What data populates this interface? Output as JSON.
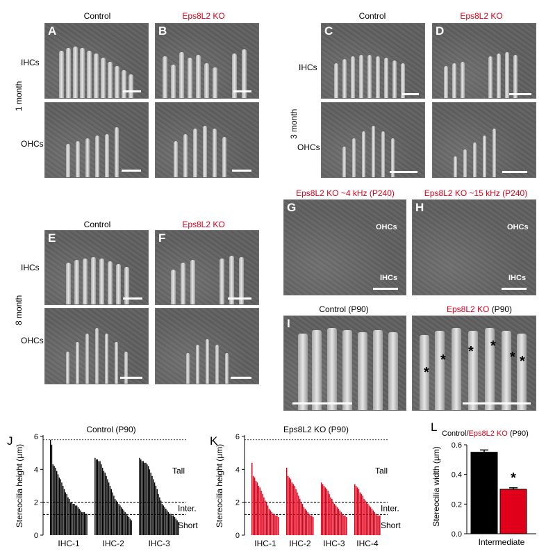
{
  "group1": {
    "age_label": "1 month",
    "col_control": "Control",
    "col_ko": "Eps8L2 KO",
    "row_ihc": "IHCs",
    "row_ohc": "OHCs",
    "panels": [
      "A",
      "B"
    ]
  },
  "group3": {
    "age_label": "3 month",
    "col_control": "Control",
    "col_ko": "Eps8L2 KO",
    "row_ihc": "IHCs",
    "row_ohc": "OHCs",
    "panels": [
      "C",
      "D"
    ]
  },
  "group8": {
    "age_label": "8 month",
    "col_control": "Control",
    "col_ko": "Eps8L2 KO",
    "row_ihc": "IHCs",
    "row_ohc": "OHCs",
    "panels": [
      "E",
      "F"
    ]
  },
  "gh": {
    "g_title": "Eps8L2 KO ~4 kHz (P240)",
    "h_title": "Eps8L2 KO ~15 kHz (P240)",
    "g_letter": "G",
    "h_letter": "H",
    "ohcs": "OHCs",
    "ihcs": "IHCs"
  },
  "ij": {
    "i_title": "Control (P90)",
    "i2_title_red": "Eps8L2 KO",
    "i2_title_black": "(P90)",
    "i_letter": "I",
    "asterisk": "*"
  },
  "colors": {
    "ko_red": "#e0001a",
    "control_black": "#000000"
  },
  "chart_data": [
    {
      "type": "bar",
      "panel": "J",
      "title": "Control (P90)",
      "ylabel": "Stereocilia height (µm)",
      "ylim": [
        0,
        6
      ],
      "yticks": [
        0,
        2,
        4,
        6
      ],
      "ref_lines": [
        5.8,
        2.0,
        1.25
      ],
      "zones": [
        "Tall",
        "Inter.",
        "Short"
      ],
      "color": "#000000",
      "groups": [
        {
          "name": "IHC-1",
          "values": [
            5.8,
            5.5,
            4.3,
            4.2,
            4.1,
            3.9,
            3.7,
            3.5,
            3.4,
            3.2,
            3.0,
            2.8,
            2.6,
            2.5,
            2.3,
            2.2,
            2.0,
            2.0,
            1.9,
            1.9,
            1.8,
            1.8,
            1.7,
            1.6,
            1.5,
            1.4,
            1.4,
            1.4,
            1.3,
            1.3
          ]
        },
        {
          "name": "IHC-2",
          "values": [
            4.7,
            4.6,
            4.6,
            4.5,
            4.5,
            4.3,
            4.1,
            3.9,
            3.8,
            3.6,
            3.4,
            3.2,
            3.0,
            2.8,
            2.6,
            2.4,
            2.2,
            2.1,
            2.0,
            1.9,
            1.8,
            1.7,
            1.6,
            1.5,
            1.4,
            1.3,
            1.2,
            1.1,
            1.0,
            0.9
          ]
        },
        {
          "name": "IHC-3",
          "values": [
            4.7,
            4.6,
            4.5,
            4.5,
            4.4,
            4.4,
            4.3,
            4.2,
            4.0,
            3.8,
            3.6,
            3.4,
            3.2,
            3.0,
            2.8,
            2.5,
            2.3,
            2.1,
            1.9,
            1.8,
            1.7,
            1.6,
            1.5,
            1.4,
            1.3,
            1.3,
            1.2,
            1.2,
            1.1,
            1.0,
            0.9,
            0.8
          ]
        }
      ]
    },
    {
      "type": "bar",
      "panel": "K",
      "title": "Eps8L2 KO (P90)",
      "ylabel": "Stereocilia height (µm)",
      "ylim": [
        0,
        6
      ],
      "yticks": [
        0,
        2,
        4,
        6
      ],
      "ref_lines": [
        5.8,
        2.0,
        1.25
      ],
      "zones": [
        "Tall",
        "Inter.",
        "Short"
      ],
      "color": "#e0001a",
      "groups": [
        {
          "name": "IHC-1",
          "values": [
            4.4,
            3.6,
            3.5,
            3.3,
            3.2,
            3.0,
            2.9,
            2.7,
            2.5,
            2.3,
            2.1,
            2.0,
            1.8,
            1.6,
            1.5,
            1.4,
            1.3,
            1.3,
            1.2,
            1.2,
            1.1
          ]
        },
        {
          "name": "IHC-2",
          "values": [
            4.1,
            3.6,
            3.5,
            3.4,
            3.2,
            3.1,
            3.0,
            2.8,
            2.6,
            2.4,
            2.2,
            2.0,
            1.9,
            1.7,
            1.6,
            1.5,
            1.4,
            1.3,
            1.2,
            1.2,
            1.1
          ]
        },
        {
          "name": "IHC-3",
          "values": [
            3.2,
            3.1,
            3.0,
            2.9,
            2.8,
            2.7,
            2.5,
            2.3,
            2.2,
            2.0,
            1.9,
            1.8,
            1.7,
            1.6,
            1.5,
            1.4,
            1.3,
            1.2,
            1.2,
            1.1
          ]
        },
        {
          "name": "IHC-4",
          "values": [
            3.1,
            3.0,
            2.9,
            2.8,
            2.6,
            2.5,
            2.4,
            2.2,
            2.1,
            2.0,
            1.9,
            1.8,
            1.7,
            1.6,
            1.5,
            1.4,
            1.3,
            1.2,
            1.2,
            1.2
          ]
        }
      ]
    },
    {
      "type": "bar",
      "panel": "L",
      "title_control": "Control/",
      "title_ko": "Eps8L2 KO",
      "title_suffix": "(P90)",
      "ylabel": "Stereocilia width (µm)",
      "xlabel": "Intermediate",
      "ylim": [
        0,
        0.6
      ],
      "yticks": [
        0.0,
        0.2,
        0.4,
        0.6
      ],
      "categories": [
        "Control",
        "Eps8L2 KO"
      ],
      "values": [
        0.55,
        0.3
      ],
      "errors": [
        0.015,
        0.01
      ],
      "colors": [
        "#000000",
        "#e0001a"
      ],
      "significance": "*"
    }
  ],
  "panel_letters": {
    "J": "J",
    "K": "K",
    "L": "L"
  }
}
